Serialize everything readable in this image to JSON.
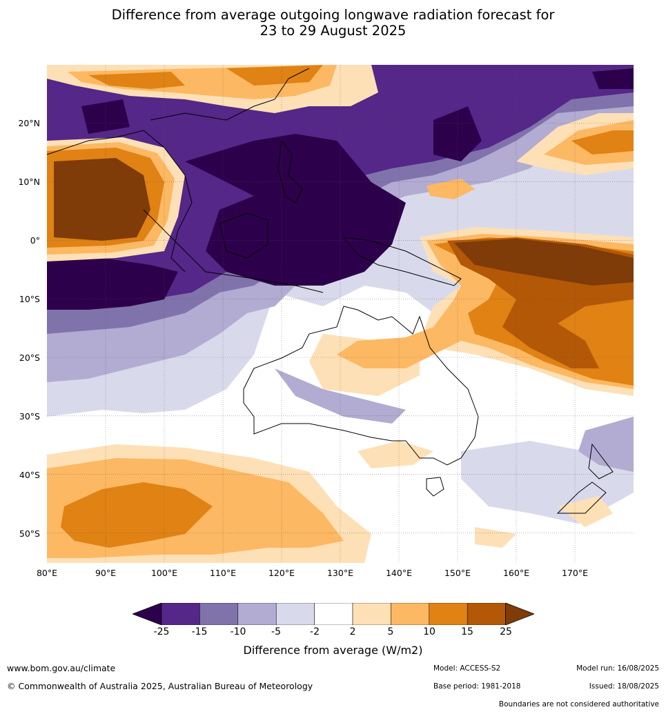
{
  "title": {
    "line1": "Difference from average outgoing longwave radiation forecast for",
    "line2": "23 to 29 August 2025"
  },
  "map": {
    "lat_labels": [
      "20°N",
      "10°N",
      "0°",
      "10°S",
      "20°S",
      "30°S",
      "40°S",
      "50°S"
    ],
    "lon_labels": [
      "80°E",
      "90°E",
      "100°E",
      "110°E",
      "120°E",
      "130°E",
      "140°E",
      "150°E",
      "160°E",
      "170°E"
    ]
  },
  "colorbar": {
    "ticks": [
      "-25",
      "-15",
      "-10",
      "-5",
      "-2",
      "2",
      "5",
      "10",
      "15",
      "25"
    ],
    "colors": {
      "below_min": "#2d004b",
      "-25_-15": "#542788",
      "-15_-10": "#8073ac",
      "-10_-5": "#b2abd2",
      "-5_-2": "#d8daeb",
      "-2_2": "#ffffff",
      "2_5": "#fee0b6",
      "5_10": "#fdb863",
      "10_15": "#e08214",
      "15_25": "#b35806",
      "above_max": "#7f3b08"
    },
    "label": "Difference from average (W/m2)"
  },
  "footer": {
    "website": "www.bom.gov.au/climate",
    "copyright": "© Commonwealth of Australia 2025, Australian Bureau of Meteorology",
    "model": "Model: ACCESS-S2",
    "model_run": "Model run: 16/08/2025",
    "base_period": "Base period: 1981-2018",
    "issued": "Issued: 18/08/2025",
    "disclaimer": "Boundaries are not considered authoritative"
  }
}
